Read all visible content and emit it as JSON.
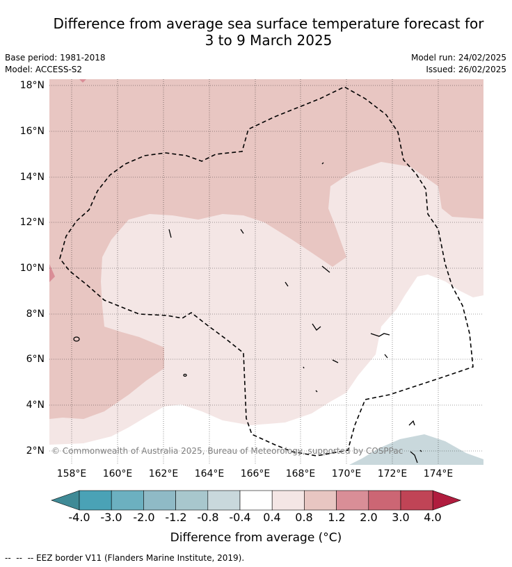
{
  "title_line1": "Difference from average sea surface temperature forecast for",
  "title_line2": "3 to 9 March 2025",
  "base_period": "Base period: 1981-2018",
  "model": "Model: ACCESS-S2",
  "model_run": "Model run: 24/02/2025",
  "issued": "Issued: 26/02/2025",
  "copyright": "© Commonwealth of Australia 2025, Bureau of Meteorology, supported by COSPPac",
  "footer": "--  --  -- EEZ border V11 (Flanders Marine Institute, 2019).",
  "colorbar": {
    "label": "Difference from average (°C)",
    "ticks": [
      "-4.0",
      "-3.0",
      "-2.0",
      "-1.2",
      "-0.8",
      "-0.4",
      "0.4",
      "0.8",
      "1.2",
      "2.0",
      "3.0",
      "4.0"
    ],
    "colors": [
      "#3f8a96",
      "#4aa2b6",
      "#6cb0c0",
      "#8fbac6",
      "#a8c7cd",
      "#c9d8dc",
      "#ffffff",
      "#f4e6e5",
      "#e8c6c2",
      "#d98e97",
      "#cc6674",
      "#c04456",
      "#b01c3e"
    ]
  },
  "axes": {
    "lat_labels": [
      "18°N",
      "16°N",
      "14°N",
      "12°N",
      "10°N",
      "8°N",
      "6°N",
      "4°N",
      "2°N"
    ],
    "lon_labels": [
      "158°E",
      "160°E",
      "162°E",
      "164°E",
      "166°E",
      "168°E",
      "170°E",
      "172°E",
      "174°E"
    ]
  }
}
